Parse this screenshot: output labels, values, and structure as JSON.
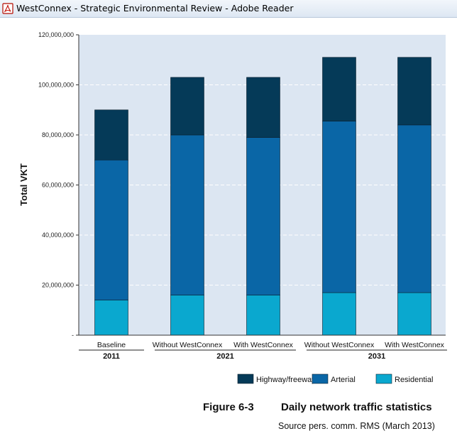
{
  "window": {
    "title": "WestConnex - Strategic Environmental Review - Adobe Reader",
    "icon": "adobe-reader-pdf-icon"
  },
  "colors": {
    "Highway/freeway": "#053a58",
    "Arterial": "#0a66a6",
    "Residential": "#0aa8cf",
    "plot_background": "#dce6f2"
  },
  "chart_data": {
    "type": "bar",
    "stacked": true,
    "title": "",
    "xlabel": "",
    "ylabel": "Total VKT",
    "ylim": [
      0,
      120000000
    ],
    "y_ticks": [
      0,
      20000000,
      40000000,
      60000000,
      80000000,
      100000000,
      120000000
    ],
    "y_tick_labels": [
      "-",
      "20,000,000",
      "40,000,000",
      "60,000,000",
      "80,000,000",
      "100,000,000",
      "120,000,000"
    ],
    "grid": true,
    "categories": [
      "Baseline",
      "Without WestConnex",
      "With WestConnex",
      "Without WestConnex",
      "With WestConnex"
    ],
    "category_groups": [
      {
        "label": "2011",
        "start": 0,
        "end": 0
      },
      {
        "label": "2021",
        "start": 1,
        "end": 2
      },
      {
        "label": "2031",
        "start": 3,
        "end": 4
      }
    ],
    "series": [
      {
        "name": "Residential",
        "values": [
          14000000,
          16000000,
          16000000,
          17000000,
          17000000
        ]
      },
      {
        "name": "Arterial",
        "values": [
          56000000,
          64000000,
          63000000,
          68500000,
          67000000
        ]
      },
      {
        "name": "Highway/freeway",
        "values": [
          20000000,
          23000000,
          24000000,
          25500000,
          27000000
        ]
      }
    ],
    "legend": {
      "position": "bottom-right",
      "order": [
        "Highway/freeway",
        "Arterial",
        "Residential"
      ]
    }
  },
  "caption": {
    "figure_number": "Figure 6-3",
    "figure_title": "Daily network traffic statistics",
    "source": "Source pers. comm. RMS (March 2013)"
  }
}
